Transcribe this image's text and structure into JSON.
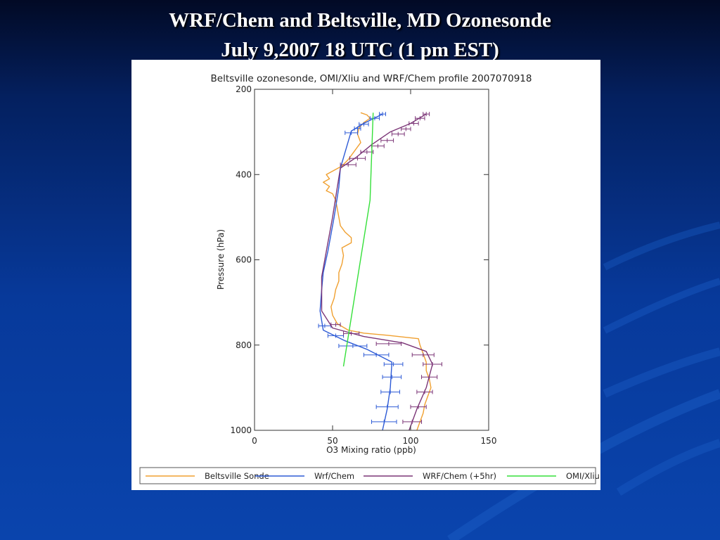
{
  "slide": {
    "title_line1": "WRF/Chem and Beltsville, MD Ozonesonde",
    "title_line2": "July 9,2007 18 UTC (1 pm EST)"
  },
  "chart_data": {
    "type": "line",
    "title": "Beltsville ozonesonde, OMI/Xliu and WRF/Chem profile 2007070918",
    "xlabel": "O3 Mixing ratio (ppb)",
    "ylabel": "Pressure (hPa)",
    "xlim": [
      0,
      150
    ],
    "ylim": [
      1000,
      200
    ],
    "y_inverted": true,
    "x_ticks": [
      "0",
      "50",
      "100",
      "150"
    ],
    "y_ticks": [
      "200",
      "400",
      "600",
      "800",
      "1000"
    ],
    "grid": false,
    "legend_position": "bottom",
    "series": [
      {
        "name": "Beltsville Sonde",
        "color": "#f0a030",
        "points": [
          [
            68,
            255
          ],
          [
            72,
            260
          ],
          [
            74,
            268
          ],
          [
            70,
            278
          ],
          [
            67,
            290
          ],
          [
            66,
            305
          ],
          [
            68,
            325
          ],
          [
            64,
            345
          ],
          [
            60,
            365
          ],
          [
            56,
            380
          ],
          [
            50,
            392
          ],
          [
            46,
            400
          ],
          [
            48,
            410
          ],
          [
            44,
            418
          ],
          [
            48,
            428
          ],
          [
            46,
            438
          ],
          [
            50,
            445
          ],
          [
            52,
            460
          ],
          [
            53,
            480
          ],
          [
            54,
            500
          ],
          [
            55,
            520
          ],
          [
            58,
            535
          ],
          [
            62,
            548
          ],
          [
            62,
            560
          ],
          [
            56,
            572
          ],
          [
            57,
            590
          ],
          [
            56,
            610
          ],
          [
            54,
            630
          ],
          [
            54,
            650
          ],
          [
            52,
            670
          ],
          [
            51,
            690
          ],
          [
            49,
            710
          ],
          [
            50,
            730
          ],
          [
            53,
            750
          ],
          [
            60,
            765
          ],
          [
            70,
            772
          ],
          [
            85,
            777
          ],
          [
            105,
            785
          ],
          [
            106,
            800
          ],
          [
            108,
            820
          ],
          [
            110,
            840
          ],
          [
            110,
            860
          ],
          [
            112,
            880
          ],
          [
            113,
            900
          ],
          [
            111,
            920
          ],
          [
            109,
            940
          ],
          [
            108,
            960
          ],
          [
            106,
            980
          ],
          [
            104,
            1000
          ]
        ]
      },
      {
        "name": "Wrf/Chem",
        "color": "#2e5bd6",
        "points": [
          [
            82,
            258
          ],
          [
            70,
            280
          ],
          [
            62,
            298
          ],
          [
            55,
            385
          ],
          [
            54,
            430
          ],
          [
            51,
            500
          ],
          [
            47,
            580
          ],
          [
            44,
            630
          ],
          [
            43,
            670
          ],
          [
            42,
            720
          ],
          [
            44,
            765
          ],
          [
            58,
            790
          ],
          [
            72,
            810
          ],
          [
            88,
            840
          ],
          [
            87,
            900
          ],
          [
            85,
            950
          ],
          [
            82,
            1000
          ]
        ],
        "error_bars": [
          [
            82,
            258,
            2
          ],
          [
            77,
            268,
            3
          ],
          [
            70,
            282,
            3
          ],
          [
            66,
            292,
            2
          ],
          [
            62,
            302,
            4
          ],
          [
            45,
            755,
            4
          ],
          [
            52,
            778,
            5
          ],
          [
            63,
            802,
            9
          ],
          [
            78,
            823,
            8
          ],
          [
            89,
            845,
            6
          ],
          [
            88,
            875,
            6
          ],
          [
            87,
            910,
            6
          ],
          [
            85,
            945,
            7
          ],
          [
            83,
            980,
            8
          ]
        ]
      },
      {
        "name": "WRF/Chem (+5hr)",
        "color": "#7b3577",
        "points": [
          [
            110,
            258
          ],
          [
            100,
            280
          ],
          [
            87,
            300
          ],
          [
            75,
            330
          ],
          [
            65,
            360
          ],
          [
            55,
            385
          ],
          [
            53,
            430
          ],
          [
            50,
            500
          ],
          [
            46,
            580
          ],
          [
            43,
            640
          ],
          [
            43,
            680
          ],
          [
            43,
            720
          ],
          [
            50,
            760
          ],
          [
            70,
            780
          ],
          [
            95,
            795
          ],
          [
            110,
            815
          ],
          [
            114,
            845
          ],
          [
            110,
            900
          ],
          [
            104,
            950
          ],
          [
            99,
            1000
          ]
        ],
        "error_bars": [
          [
            110,
            258,
            2
          ],
          [
            106,
            268,
            3
          ],
          [
            102,
            280,
            3
          ],
          [
            97,
            293,
            3
          ],
          [
            92,
            305,
            4
          ],
          [
            85,
            320,
            4
          ],
          [
            79,
            333,
            4
          ],
          [
            72,
            347,
            4
          ],
          [
            66,
            362,
            5
          ],
          [
            60,
            377,
            5
          ],
          [
            52,
            752,
            3
          ],
          [
            62,
            773,
            5
          ],
          [
            86,
            797,
            8
          ],
          [
            108,
            823,
            7
          ],
          [
            114,
            845,
            6
          ],
          [
            112,
            875,
            5
          ],
          [
            109,
            910,
            5
          ],
          [
            105,
            945,
            5
          ],
          [
            101,
            980,
            6
          ]
        ]
      },
      {
        "name": "OMI/Xliu",
        "color": "#35e03a",
        "points": [
          [
            76,
            255
          ],
          [
            74,
            460
          ],
          [
            57,
            850
          ]
        ]
      }
    ]
  }
}
